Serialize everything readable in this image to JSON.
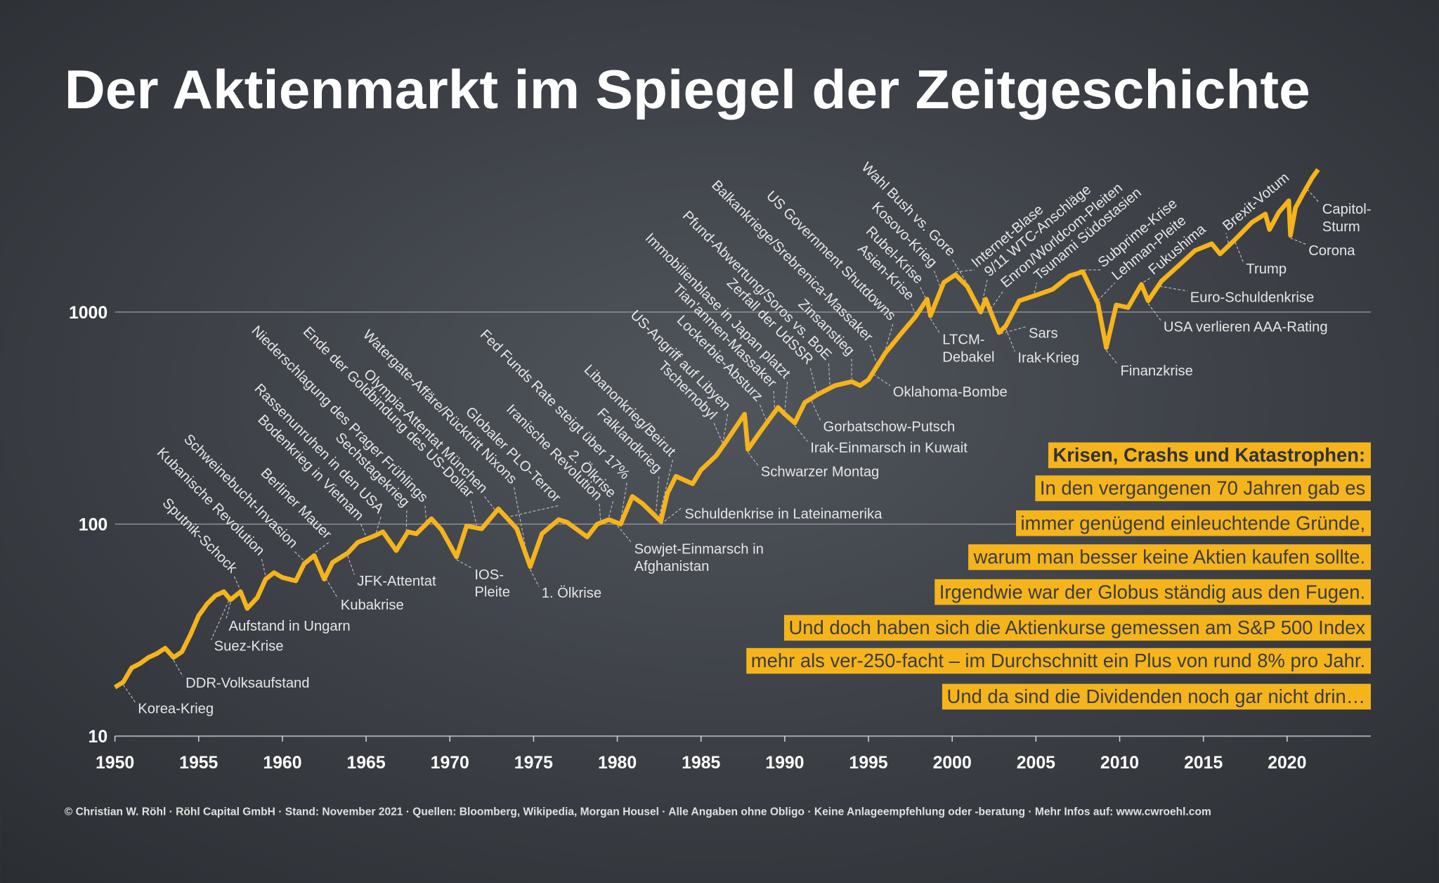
{
  "chart_data": {
    "type": "line",
    "title": "Der Aktienmarkt im Spiegel der Zeitgeschichte",
    "footer": "© Christian W. Röhl · Röhl Capital GmbH · Stand: November 2021 · Quellen: Bloomberg, Wikipedia, Morgan Housel · Alle Angaben ohne Obligo · Keine Anlageempfehlung oder -beratung · Mehr Infos auf: www.cwroehl.com",
    "log_scale": true,
    "grid": true,
    "xlim": [
      1950,
      2025
    ],
    "xticks": [
      1950,
      1955,
      1960,
      1965,
      1970,
      1975,
      1980,
      1985,
      1990,
      1995,
      2000,
      2005,
      2010,
      2015,
      2020
    ],
    "ylim": [
      10,
      5000
    ],
    "yticks": [
      10,
      100,
      1000
    ],
    "x": [
      1950,
      1950.5,
      1951,
      1951.5,
      1952,
      1952.5,
      1953,
      1953.5,
      1954,
      1954.5,
      1955,
      1955.5,
      1956,
      1956.5,
      1956.9,
      1957.5,
      1957.9,
      1958.5,
      1959,
      1959.5,
      1960,
      1960.8,
      1961.3,
      1961.9,
      1962.5,
      1963,
      1963.9,
      1964.5,
      1965.5,
      1966,
      1966.8,
      1967.5,
      1968,
      1968.9,
      1969.5,
      1970.4,
      1971,
      1971.9,
      1972.9,
      1973.5,
      1974,
      1974.8,
      1975.5,
      1976.5,
      1977,
      1978.2,
      1978.8,
      1979.5,
      1980.2,
      1980.9,
      1981.5,
      1982.6,
      1983,
      1983.5,
      1984.5,
      1985,
      1985.9,
      1986.5,
      1987.6,
      1987.8,
      1988.5,
      1989.6,
      1990,
      1990.6,
      1991.2,
      1992,
      1993,
      1994,
      1994.5,
      1995,
      1996,
      1997,
      1997.8,
      1998.5,
      1998.7,
      1999.5,
      2000.2,
      2000.9,
      2001.7,
      2002,
      2002.8,
      2003.2,
      2004,
      2005,
      2006,
      2007,
      2007.8,
      2008.7,
      2009.2,
      2009.8,
      2010.5,
      2011.3,
      2011.7,
      2012.5,
      2013.5,
      2014.5,
      2015.5,
      2016,
      2016.9,
      2017.9,
      2018.7,
      2018.95,
      2019.5,
      2020.1,
      2020.2,
      2020.5,
      2020.9,
      2021.5,
      2021.85
    ],
    "series": [
      {
        "color": "#f5b41c",
        "values": [
          17,
          18,
          21,
          22,
          23.5,
          24.5,
          26,
          23.5,
          25,
          30,
          37,
          42,
          46,
          48,
          44,
          48,
          40,
          45,
          55,
          59,
          56,
          54,
          65,
          71,
          55,
          66,
          73,
          82,
          88,
          92,
          75,
          92,
          90,
          106,
          94,
          70,
          98,
          95,
          118,
          105,
          95,
          63,
          90,
          105,
          102,
          87,
          100,
          105,
          100,
          135,
          125,
          103,
          140,
          168,
          155,
          180,
          210,
          245,
          330,
          225,
          270,
          355,
          330,
          300,
          375,
          410,
          450,
          470,
          450,
          480,
          640,
          800,
          950,
          1150,
          960,
          1380,
          1500,
          1320,
          1000,
          1150,
          800,
          860,
          1130,
          1200,
          1280,
          1480,
          1550,
          1100,
          680,
          1080,
          1050,
          1350,
          1130,
          1400,
          1650,
          1950,
          2100,
          1880,
          2200,
          2650,
          2900,
          2450,
          2950,
          3350,
          2300,
          3100,
          3550,
          4300,
          4700
        ]
      }
    ],
    "annotations_left": [
      {
        "text": "Sputnik-Schock",
        "x": 1957.8
      },
      {
        "text": "Kubanische Revolution",
        "x": 1959
      },
      {
        "text": "Schweinebucht-Invasion",
        "x": 1961.3
      },
      {
        "text": "Berliner Mauer",
        "x": 1961.6
      },
      {
        "text": "Bodenkrieg in Vietnam",
        "x": 1965
      },
      {
        "text": "Rassenunruhen in den USA",
        "x": 1965.6
      },
      {
        "text": "Sechstagekrieg",
        "x": 1967.4
      },
      {
        "text": "Niederschlagung des Prager Frühlings",
        "x": 1968.6
      },
      {
        "text": "Ende der Goldbindung des US-Dollar",
        "x": 1971.6
      },
      {
        "text": "Olympia-Attentat München",
        "x": 1972.7
      },
      {
        "text": "Watergate-Affäre/Rücktritt Nixons",
        "x": 1974.6
      },
      {
        "text": "Globaler PLO-Terror",
        "x": 1973.5
      },
      {
        "text": "Iranische Revolution",
        "x": 1979
      },
      {
        "text": "Fed Funds Rate steigt über 17%",
        "x": 1980.2
      },
      {
        "text": "2. Ölkrise",
        "x": 1979.5
      },
      {
        "text": "Falklandkrieg",
        "x": 1982.3
      },
      {
        "text": "Libanonkrieg/Beirut",
        "x": 1982.5
      },
      {
        "text": "Tschernobyl",
        "x": 1986.3
      },
      {
        "text": "US-Angriff auf Libyen",
        "x": 1986.3
      },
      {
        "text": "Lockerbie-Absturz",
        "x": 1988.9
      },
      {
        "text": "Tian'anmen-Massaker",
        "x": 1989.4
      },
      {
        "text": "Immobilienblase in Japan platzt",
        "x": 1990
      },
      {
        "text": "Zerfall der UdSSR",
        "x": 1991.9
      },
      {
        "text": "Pfund-Abwertung/Soros vs. BoE",
        "x": 1992.7
      },
      {
        "text": "Zinsanstieg",
        "x": 1994
      },
      {
        "text": "Balkankriege/Srebrenica-Massaker",
        "x": 1995.5
      },
      {
        "text": "US Government Shutdowns",
        "x": 1996
      },
      {
        "text": "Asien-Krise",
        "x": 1997.8
      },
      {
        "text": "Rubel-Krise",
        "x": 1998.6
      },
      {
        "text": "Kosovo-Krieg",
        "x": 1999.3
      },
      {
        "text": "Wahl Bush vs. Gore",
        "x": 2000.9
      }
    ],
    "annotations_right": [
      {
        "text": "Internet-Blase",
        "x": 2000.2
      },
      {
        "text": "9/11 WTC-Anschläge",
        "x": 2001.7
      },
      {
        "text": "Enron/Worldcom-Pleiten",
        "x": 2002.3
      },
      {
        "text": "Tsunami Südostasien",
        "x": 2004.9
      },
      {
        "text": "Subprime-Krise",
        "x": 2007.6
      },
      {
        "text": "Lehman-Pleite",
        "x": 2008.7
      },
      {
        "text": "Fukushima",
        "x": 2011.2
      },
      {
        "text": "Brexit-Votum",
        "x": 2016.5
      }
    ],
    "annotations_below": [
      {
        "text": "Korea-Krieg",
        "x": 1950.5
      },
      {
        "text": "DDR-Volksaufstand",
        "x": 1953.5
      },
      {
        "text": "Suez-Krise",
        "x": 1956.8
      },
      {
        "text": "Aufstand in Ungarn",
        "x": 1956.9
      },
      {
        "text": "Kubakrise",
        "x": 1962.6
      },
      {
        "text": "JFK-Attentat",
        "x": 1963.9
      },
      {
        "text": [
          "IOS-",
          "Pleite"
        ],
        "x": 1970.4
      },
      {
        "text": "1. Ölkrise",
        "x": 1974.8
      },
      {
        "text": [
          "Sowjet-Einmarsch in",
          "Afghanistan"
        ],
        "x": 1980
      },
      {
        "text": "Schuldenkrise in Lateinamerika",
        "x": 1982.6
      },
      {
        "text": "Schwarzer Montag",
        "x": 1987.8
      },
      {
        "text": "Irak-Einmarsch in Kuwait",
        "x": 1990.6
      },
      {
        "text": "Gorbatschow-Putsch",
        "x": 1991.6
      },
      {
        "text": "Oklahoma-Bombe",
        "x": 1995.3
      },
      {
        "text": [
          "LTCM-",
          "Debakel"
        ],
        "x": 1998.7
      },
      {
        "text": "Irak-Krieg",
        "x": 2003.2
      },
      {
        "text": "Sars",
        "x": 2002.9
      },
      {
        "text": "Finanzkrise",
        "x": 2009.2
      },
      {
        "text": "USA verlieren AAA-Rating",
        "x": 2011.7
      },
      {
        "text": "Euro-Schuldenkrise",
        "x": 2012.4
      },
      {
        "text": "Trump",
        "x": 2016.9
      },
      {
        "text": "Corona",
        "x": 2020.2
      },
      {
        "text": [
          "Capitol-",
          "Sturm"
        ],
        "x": 2021.2
      }
    ],
    "info_box": {
      "title": "Krisen, Crashs und Katastrophen:",
      "lines": [
        "In den vergangenen 70 Jahren gab es",
        "immer genügend einleuchtende Gründe,",
        "warum man besser keine Aktien kaufen sollte.",
        "Irgendwie war der Globus ständig aus den Fugen.",
        "Und doch haben sich die Aktienkurse gemessen am S&P 500 Index",
        "mehr als ver-250-facht – im Durchschnitt ein Plus von rund 8% pro Jahr.",
        "Und da sind die Dividenden noch gar nicht drin…"
      ]
    }
  }
}
